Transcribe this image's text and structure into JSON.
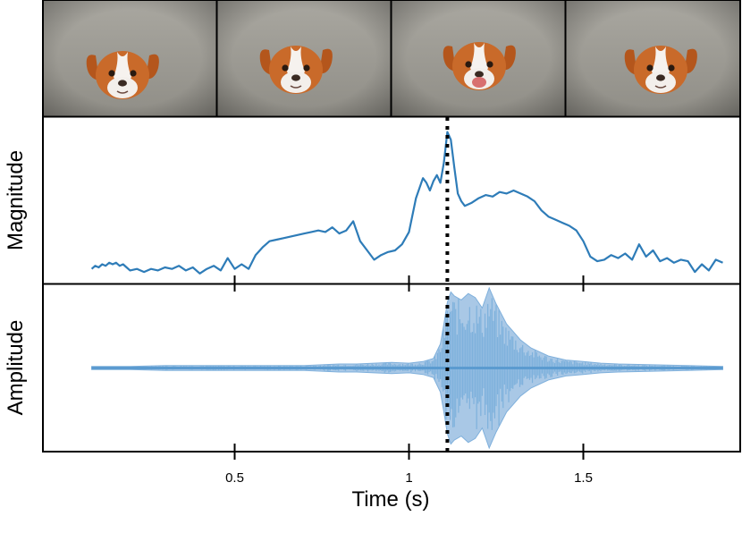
{
  "chart_data": [
    {
      "type": "image-strip",
      "name": "video-frames",
      "frames": [
        {
          "label": "frame-1",
          "subject": "puppy-head",
          "mouth_open": false
        },
        {
          "label": "frame-2",
          "subject": "puppy-head",
          "mouth_open": false
        },
        {
          "label": "frame-3",
          "subject": "puppy-head",
          "mouth_open": true
        },
        {
          "label": "frame-4",
          "subject": "puppy-head",
          "mouth_open": false
        }
      ]
    },
    {
      "type": "line",
      "name": "magnitude",
      "ylabel": "Magnitude",
      "xlim": [
        -0.05,
        1.95
      ],
      "ylim": [
        0,
        1
      ],
      "color": "#2e7cb8",
      "x": [
        0.09,
        0.1,
        0.11,
        0.12,
        0.13,
        0.14,
        0.15,
        0.16,
        0.17,
        0.18,
        0.19,
        0.2,
        0.22,
        0.24,
        0.26,
        0.28,
        0.3,
        0.32,
        0.34,
        0.36,
        0.38,
        0.4,
        0.42,
        0.44,
        0.46,
        0.48,
        0.5,
        0.52,
        0.54,
        0.56,
        0.58,
        0.6,
        0.62,
        0.64,
        0.66,
        0.68,
        0.7,
        0.72,
        0.74,
        0.76,
        0.78,
        0.8,
        0.82,
        0.84,
        0.86,
        0.88,
        0.9,
        0.92,
        0.94,
        0.96,
        0.98,
        1.0,
        1.02,
        1.04,
        1.05,
        1.06,
        1.07,
        1.08,
        1.09,
        1.1,
        1.11,
        1.12,
        1.13,
        1.14,
        1.15,
        1.16,
        1.18,
        1.2,
        1.22,
        1.24,
        1.26,
        1.28,
        1.3,
        1.32,
        1.34,
        1.36,
        1.38,
        1.4,
        1.42,
        1.44,
        1.46,
        1.48,
        1.5,
        1.52,
        1.54,
        1.56,
        1.58,
        1.6,
        1.62,
        1.64,
        1.66,
        1.68,
        1.7,
        1.72,
        1.74,
        1.76,
        1.78,
        1.8,
        1.82,
        1.84,
        1.86,
        1.88,
        1.9
      ],
      "values": [
        0.06,
        0.08,
        0.07,
        0.09,
        0.08,
        0.1,
        0.09,
        0.1,
        0.08,
        0.09,
        0.07,
        0.05,
        0.06,
        0.04,
        0.06,
        0.05,
        0.07,
        0.06,
        0.08,
        0.05,
        0.07,
        0.03,
        0.06,
        0.08,
        0.05,
        0.13,
        0.06,
        0.09,
        0.06,
        0.15,
        0.2,
        0.24,
        0.25,
        0.26,
        0.27,
        0.28,
        0.29,
        0.3,
        0.31,
        0.3,
        0.33,
        0.29,
        0.31,
        0.37,
        0.24,
        0.18,
        0.12,
        0.15,
        0.17,
        0.18,
        0.22,
        0.3,
        0.52,
        0.65,
        0.62,
        0.57,
        0.63,
        0.67,
        0.62,
        0.75,
        0.95,
        0.9,
        0.72,
        0.55,
        0.5,
        0.47,
        0.49,
        0.52,
        0.54,
        0.53,
        0.56,
        0.55,
        0.57,
        0.55,
        0.53,
        0.5,
        0.44,
        0.4,
        0.38,
        0.36,
        0.34,
        0.31,
        0.24,
        0.14,
        0.11,
        0.12,
        0.15,
        0.13,
        0.16,
        0.12,
        0.22,
        0.14,
        0.18,
        0.11,
        0.13,
        0.1,
        0.12,
        0.11,
        0.04,
        0.09,
        0.05,
        0.12,
        0.1
      ]
    },
    {
      "type": "area",
      "name": "amplitude",
      "ylabel": "Amplitude",
      "xlim": [
        -0.05,
        1.95
      ],
      "ylim": [
        -1,
        1
      ],
      "color": "#5b9bd0",
      "fill_color": "#a9c8e6",
      "x": [
        0.09,
        0.2,
        0.3,
        0.4,
        0.5,
        0.6,
        0.7,
        0.75,
        0.8,
        0.85,
        0.9,
        0.95,
        1.0,
        1.04,
        1.07,
        1.09,
        1.1,
        1.11,
        1.12,
        1.13,
        1.15,
        1.17,
        1.19,
        1.21,
        1.23,
        1.25,
        1.28,
        1.3,
        1.32,
        1.35,
        1.4,
        1.45,
        1.5,
        1.55,
        1.6,
        1.7,
        1.8,
        1.9
      ],
      "envelope": [
        0.02,
        0.02,
        0.03,
        0.03,
        0.03,
        0.03,
        0.03,
        0.04,
        0.05,
        0.05,
        0.06,
        0.07,
        0.06,
        0.08,
        0.12,
        0.3,
        0.55,
        0.82,
        0.95,
        0.9,
        0.85,
        0.93,
        0.88,
        0.75,
        1.0,
        0.8,
        0.55,
        0.45,
        0.35,
        0.25,
        0.15,
        0.1,
        0.08,
        0.06,
        0.05,
        0.04,
        0.03,
        0.02
      ]
    },
    {
      "type": "annotation",
      "name": "onset-marker",
      "style": "dotted-vertical-line",
      "x": 1.11
    }
  ],
  "axes": {
    "xlabel": "Time (s)",
    "xticks": [
      0.5,
      1,
      1.5
    ],
    "xtick_labels": [
      "0.5",
      "1",
      "1.5"
    ],
    "magnitude_ylabel": "Magnitude",
    "amplitude_ylabel": "Amplitude"
  }
}
